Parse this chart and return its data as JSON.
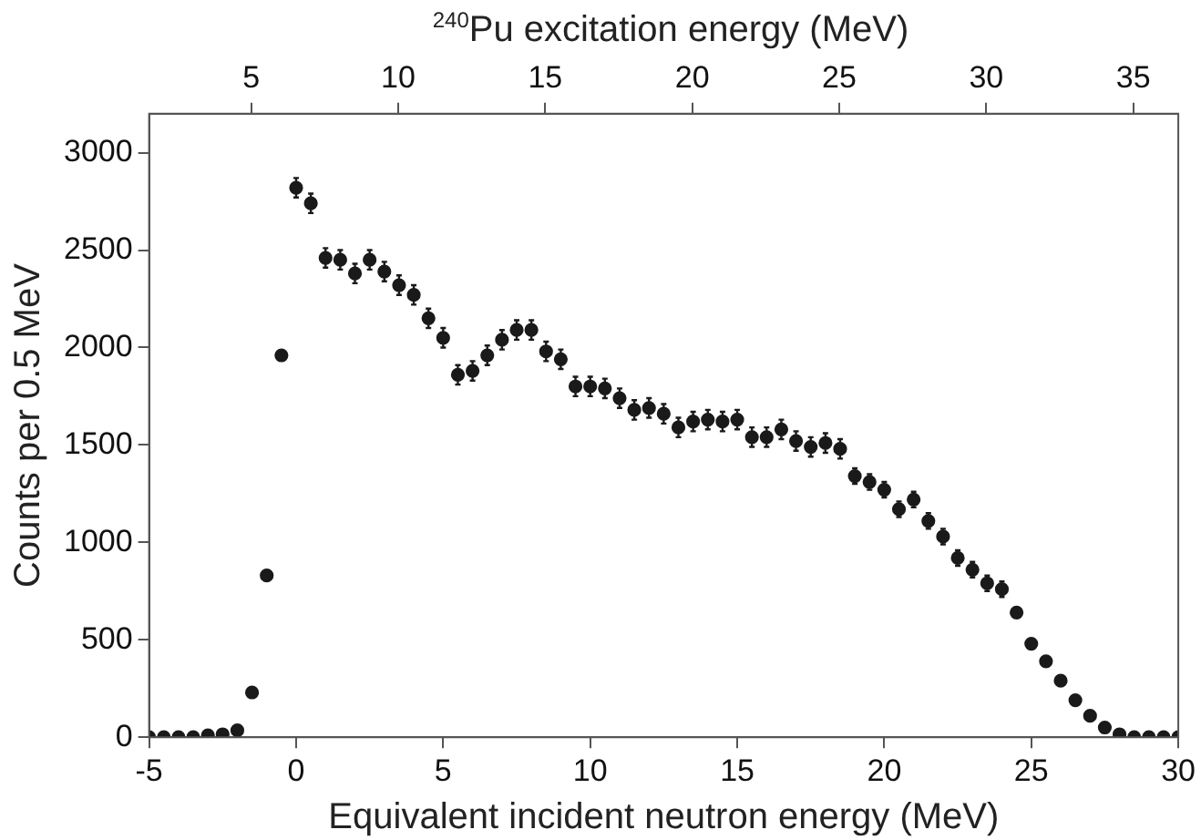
{
  "chart_data": {
    "type": "scatter",
    "xlabel": "Equivalent incident neutron energy (MeV)",
    "ylabel": "Counts per 0.5 MeV",
    "x2label": "$^{240}$Pu excitation energy (MeV)",
    "xlim": [
      -5,
      30
    ],
    "xticks": [
      -5,
      0,
      5,
      10,
      15,
      20,
      25,
      30
    ],
    "ylim": [
      0,
      3200
    ],
    "yticks": [
      0,
      500,
      1000,
      1500,
      2000,
      2500,
      3000
    ],
    "x2lim": [
      1.53,
      36.53
    ],
    "x2ticks": [
      5,
      10,
      15,
      20,
      25,
      30,
      35
    ],
    "grid": false,
    "legend": false,
    "marker": "circle",
    "series": [
      {
        "color": "#1a1a1a",
        "x": [
          -5,
          -4.5,
          -4,
          -3.5,
          -3,
          -2.5,
          -2,
          -1.5,
          -1,
          -0.5,
          0,
          0.5,
          1,
          1.5,
          2,
          2.5,
          3,
          3.5,
          4,
          4.5,
          5,
          5.5,
          6,
          6.5,
          7,
          7.5,
          8,
          8.5,
          9,
          9.5,
          10,
          10.5,
          11,
          11.5,
          12,
          12.5,
          13,
          13.5,
          14,
          14.5,
          15,
          15.5,
          16,
          16.5,
          17,
          17.5,
          18,
          18.5,
          19,
          19.5,
          20,
          20.5,
          21,
          21.5,
          22,
          22.5,
          23,
          23.5,
          24,
          24.5,
          25,
          25.5,
          26,
          26.5,
          27,
          27.5,
          28,
          28.5,
          29,
          29.5,
          30
        ],
        "values": [
          0,
          0,
          0,
          0,
          10,
          15,
          35,
          230,
          830,
          1960,
          2820,
          2740,
          2460,
          2450,
          2380,
          2450,
          2390,
          2320,
          2270,
          2150,
          2050,
          1860,
          1880,
          1960,
          2040,
          2090,
          2090,
          1980,
          1940,
          1800,
          1800,
          1790,
          1740,
          1680,
          1690,
          1660,
          1590,
          1620,
          1630,
          1620,
          1630,
          1540,
          1540,
          1580,
          1520,
          1490,
          1510,
          1480,
          1340,
          1310,
          1270,
          1170,
          1220,
          1110,
          1030,
          920,
          860,
          790,
          760,
          640,
          480,
          390,
          290,
          190,
          110,
          50,
          15,
          0,
          0,
          0,
          0
        ],
        "errors": [
          null,
          null,
          null,
          null,
          null,
          null,
          null,
          null,
          null,
          null,
          50,
          50,
          50,
          50,
          50,
          50,
          50,
          50,
          50,
          50,
          50,
          50,
          50,
          50,
          50,
          50,
          50,
          50,
          50,
          50,
          50,
          50,
          50,
          50,
          50,
          50,
          50,
          50,
          50,
          50,
          50,
          50,
          50,
          50,
          50,
          50,
          50,
          50,
          40,
          40,
          40,
          40,
          40,
          40,
          40,
          40,
          40,
          40,
          40,
          null,
          null,
          null,
          null,
          null,
          null,
          null,
          null,
          null,
          null,
          null,
          null
        ]
      }
    ]
  }
}
